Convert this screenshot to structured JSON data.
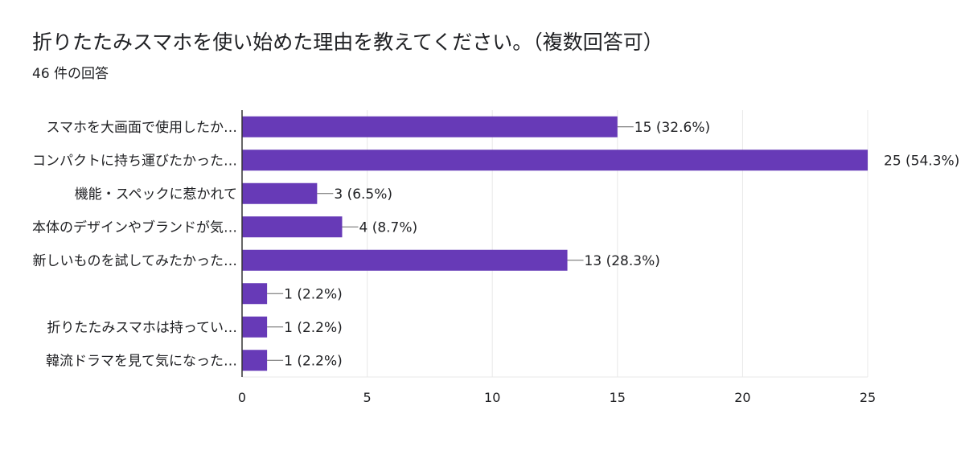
{
  "header": {
    "title": "折りたたみスマホを使い始めた理由を教えてください。（複数回答可）",
    "response_count": "46 件の回答"
  },
  "colors": {
    "bar": "#673ab7",
    "grid": "#e8e8e8",
    "axis": "#333333",
    "text": "#202124"
  },
  "chart_data": {
    "type": "bar",
    "orientation": "horizontal",
    "title": "折りたたみスマホを使い始めた理由を教えてください。（複数回答可）",
    "subtitle": "46 件の回答",
    "categories": [
      "スマホを大画面で使用したか…",
      "コンパクトに持ち運びたかった…",
      "機能・スペックに惹かれて",
      "本体のデザインやブランドが気…",
      "新しいものを試してみたかった…",
      "",
      "折りたたみスマホは持ってい…",
      "韓流ドラマを見て気になった…"
    ],
    "values": [
      15,
      25,
      3,
      4,
      13,
      1,
      1,
      1
    ],
    "data_labels": [
      "15 (32.6%)",
      "25 (54.3%)",
      "3 (6.5%)",
      "4 (8.7%)",
      "13 (28.3%)",
      "1 (2.2%)",
      "1 (2.2%)",
      "1 (2.2%)"
    ],
    "xlim": [
      0,
      25
    ],
    "xticks": [
      0,
      5,
      10,
      15,
      20,
      25
    ],
    "xlabel": "",
    "ylabel": "",
    "grid": true,
    "legend": "none"
  }
}
